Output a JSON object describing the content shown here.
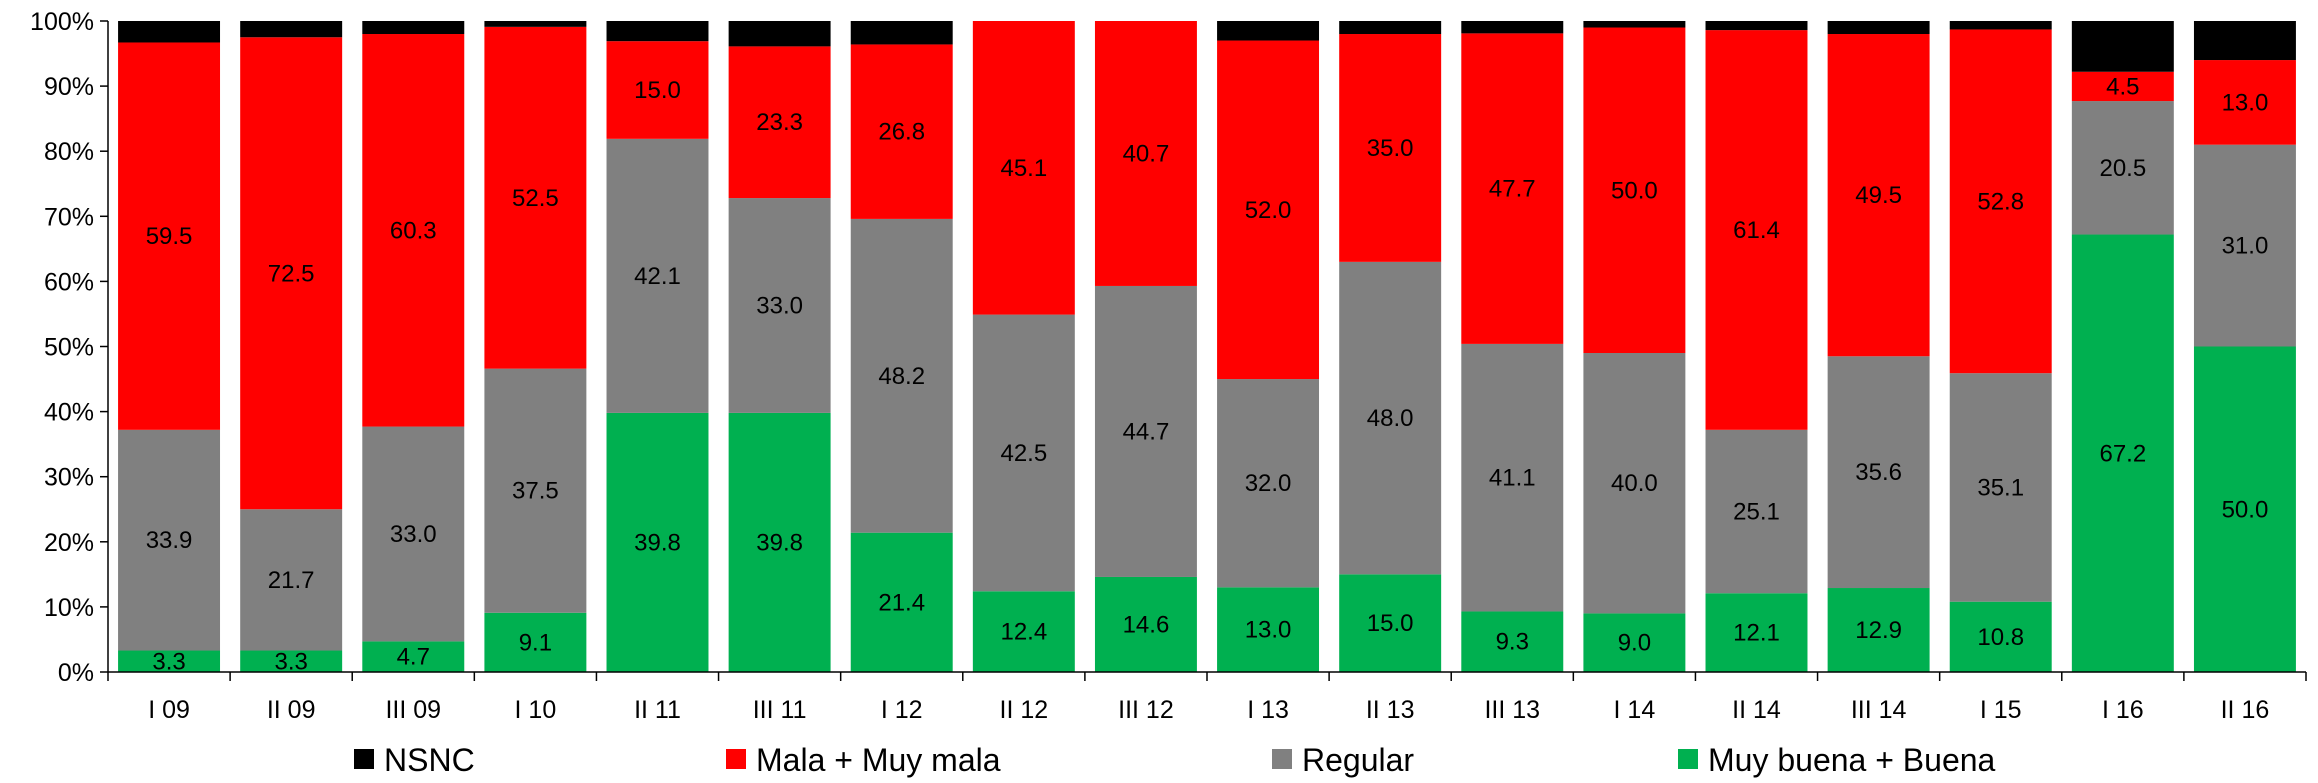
{
  "chart_data": {
    "type": "bar",
    "stacked": true,
    "percent_stacked": true,
    "categories": [
      "I 09",
      "II 09",
      "III 09",
      "I 10",
      "II 11",
      "III 11",
      "I 12",
      "II 12",
      "III 12",
      "I 13",
      "II 13",
      "III 13",
      "I 14",
      "II 14",
      "III 14",
      "I 15",
      "I 16",
      "II 16"
    ],
    "series": [
      {
        "name": "Muy buena + Buena",
        "color": "#00b050",
        "values": [
          3.3,
          3.3,
          4.7,
          9.1,
          39.8,
          39.8,
          21.4,
          12.4,
          14.6,
          13.0,
          15.0,
          9.3,
          9.0,
          12.1,
          12.9,
          10.8,
          67.2,
          50.0
        ],
        "labels": [
          "3.3",
          "3.3",
          "4.7",
          "9.1",
          "39.8",
          "39.8",
          "21.4",
          "12.4",
          "14.6",
          "13.0",
          "15.0",
          "9.3",
          "9.0",
          "12.1",
          "12.9",
          "10.8",
          "67.2",
          "50.0"
        ]
      },
      {
        "name": "Regular",
        "color": "#808080",
        "values": [
          33.9,
          21.7,
          33.0,
          37.5,
          42.1,
          33.0,
          48.2,
          42.5,
          44.7,
          32.0,
          48.0,
          41.1,
          40.0,
          25.1,
          35.6,
          35.1,
          20.5,
          31.0
        ],
        "labels": [
          "33.9",
          "21.7",
          "33.0",
          "37.5",
          "42.1",
          "33.0",
          "48.2",
          "42.5",
          "44.7",
          "32.0",
          "48.0",
          "41.1",
          "40.0",
          "25.1",
          "35.6",
          "35.1",
          "20.5",
          "31.0"
        ]
      },
      {
        "name": "Mala + Muy mala",
        "color": "#ff0000",
        "values": [
          59.5,
          72.5,
          60.3,
          52.5,
          15.0,
          23.3,
          26.8,
          45.1,
          40.7,
          52.0,
          35.0,
          47.7,
          50.0,
          61.4,
          49.5,
          52.8,
          4.5,
          13.0
        ],
        "labels": [
          "59.5",
          "72.5",
          "60.3",
          "52.5",
          "15.0",
          "23.3",
          "26.8",
          "45.1",
          "40.7",
          "52.0",
          "35.0",
          "47.7",
          "50.0",
          "61.4",
          "49.5",
          "52.8",
          "4.5",
          "13.0"
        ]
      },
      {
        "name": "NSNC",
        "color": "#000000",
        "values": [
          3.3,
          2.5,
          2.0,
          0.9,
          3.1,
          3.9,
          3.6,
          0.0,
          0.0,
          3.0,
          2.0,
          1.9,
          1.0,
          1.4,
          2.0,
          1.3,
          7.8,
          6.0
        ],
        "labels": [
          "",
          "",
          "",
          "",
          "",
          "",
          "",
          "",
          "",
          "",
          "",
          "",
          "",
          "",
          "",
          "",
          "",
          ""
        ]
      }
    ],
    "ylim": [
      0,
      100
    ],
    "yticks": [
      "0%",
      "10%",
      "20%",
      "30%",
      "40%",
      "50%",
      "60%",
      "70%",
      "80%",
      "90%",
      "100%"
    ],
    "legend_order": [
      "NSNC",
      "Mala + Muy mala",
      "Regular",
      "Muy buena + Buena"
    ],
    "legend_position": "bottom",
    "grid": false,
    "title": "",
    "xlabel": "",
    "ylabel": ""
  }
}
